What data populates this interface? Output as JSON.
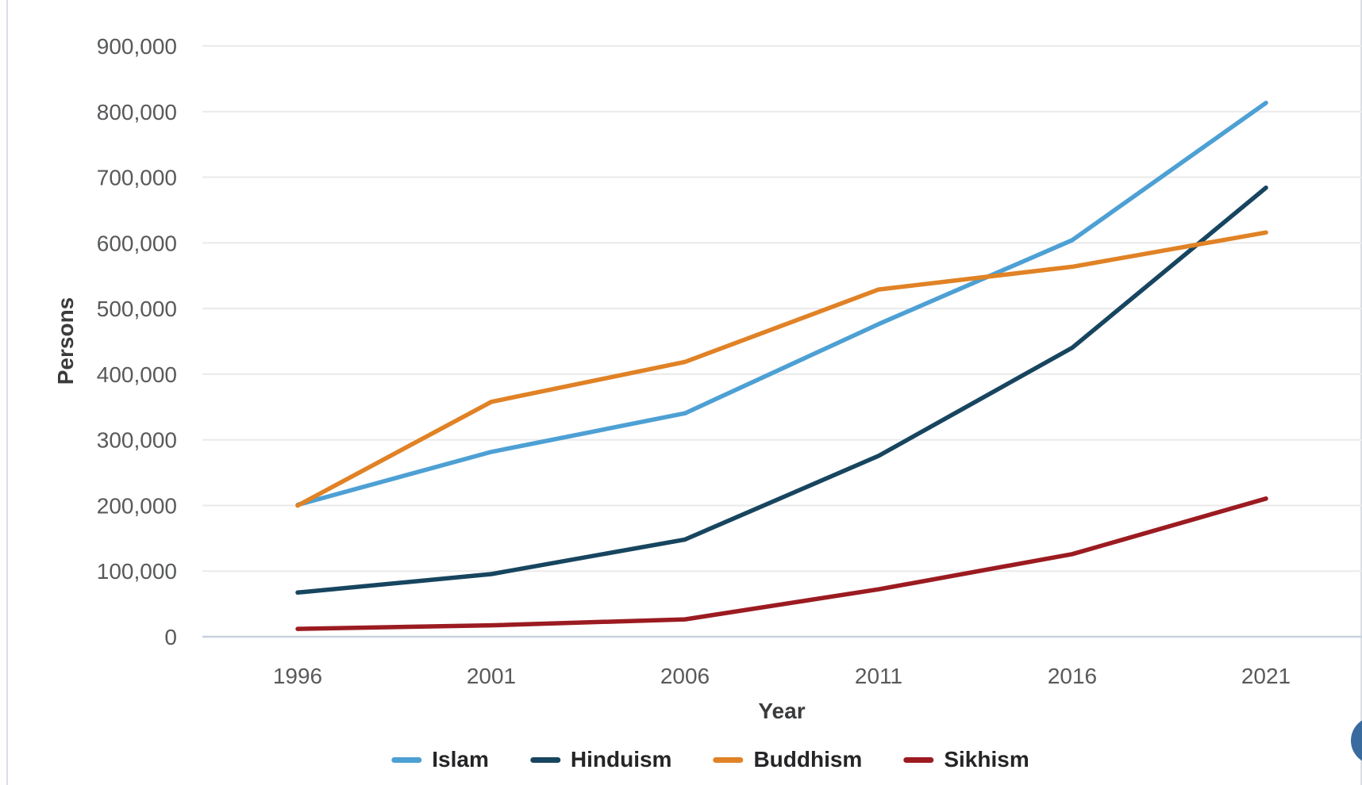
{
  "chart_data": {
    "type": "line",
    "xlabel": "Year",
    "ylabel": "Persons",
    "categories": [
      "1996",
      "2001",
      "2006",
      "2011",
      "2016",
      "2021"
    ],
    "series": [
      {
        "name": "Islam",
        "color": "#4DA0D4",
        "values": [
          200885,
          281578,
          340394,
          476291,
          604240,
          813392
        ]
      },
      {
        "name": "Hinduism",
        "color": "#17455F",
        "values": [
          67279,
          95473,
          148119,
          275534,
          440300,
          684002
        ]
      },
      {
        "name": "Buddhism",
        "color": "#E08225",
        "values": [
          199812,
          357813,
          418749,
          528977,
          563674,
          615823
        ]
      },
      {
        "name": "Sikhism",
        "color": "#9B1B21",
        "values": [
          12017,
          17401,
          26429,
          72296,
          125904,
          210400
        ]
      }
    ],
    "ylim": [
      0,
      900000
    ],
    "y_ticks": [
      0,
      100000,
      200000,
      300000,
      400000,
      500000,
      600000,
      700000,
      800000,
      900000
    ],
    "grid": "horizontal-only",
    "legend_position": "bottom-center",
    "colors": {
      "gridline": "#EAEAEA",
      "axis_baseline": "#C7D1DC",
      "tick_label": "#58595B",
      "axis_title": "#3A3B3D",
      "legend_label": "#252527",
      "page_border": "#DADEE4",
      "fab_button": "#3A6B9E"
    }
  }
}
